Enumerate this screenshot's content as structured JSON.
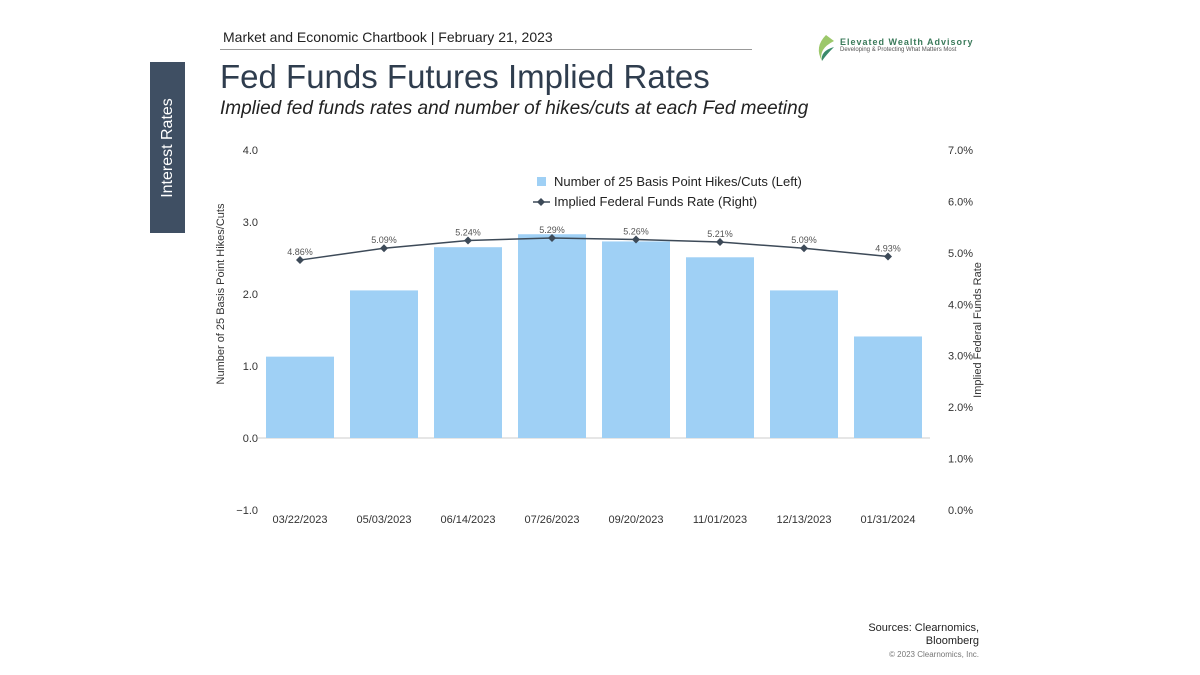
{
  "header": "Market and Economic Chartbook | February 21, 2023",
  "side_tab": "Interest Rates",
  "title": "Fed Funds Futures Implied Rates",
  "subtitle": "Implied fed funds rates and number of hikes/cuts at each Fed meeting",
  "logo": {
    "name": "Elevated Wealth Advisory",
    "tagline": "Developing & Protecting What Matters Most"
  },
  "sources": [
    "Sources: Clearnomics,",
    "Bloomberg"
  ],
  "copyright": "© 2023 Clearnomics, Inc.",
  "chart_data": {
    "type": "bar+line",
    "categories": [
      "03/22/2023",
      "05/03/2023",
      "06/14/2023",
      "07/26/2023",
      "09/20/2023",
      "11/01/2023",
      "12/13/2023",
      "01/31/2024"
    ],
    "series": [
      {
        "name": "Number of 25 Basis Point Hikes/Cuts (Left)",
        "type": "bar",
        "axis": "left",
        "color": "#9fd0f5",
        "values": [
          1.13,
          2.05,
          2.65,
          2.83,
          2.73,
          2.51,
          2.05,
          1.41
        ]
      },
      {
        "name": "Implied Federal Funds Rate (Right)",
        "type": "line",
        "axis": "right",
        "color": "#3d4a58",
        "values": [
          4.86,
          5.09,
          5.24,
          5.29,
          5.26,
          5.21,
          5.09,
          4.93
        ],
        "labels": [
          "4.86%",
          "5.09%",
          "5.24%",
          "5.29%",
          "5.26%",
          "5.21%",
          "5.09%",
          "4.93%"
        ]
      }
    ],
    "ylabel": "Number of 25 Basis Point Hikes/Cuts",
    "y2label": "Implied Federal Funds Rate",
    "ylim": [
      -1,
      4
    ],
    "y2lim": [
      0,
      7
    ],
    "yticks": [
      "−1.0",
      "0.0",
      "1.0",
      "2.0",
      "3.0",
      "4.0"
    ],
    "y2ticks": [
      "0.0%",
      "1.0%",
      "2.0%",
      "3.0%",
      "4.0%",
      "5.0%",
      "6.0%",
      "7.0%"
    ],
    "legend": "top-center",
    "grid": false
  }
}
